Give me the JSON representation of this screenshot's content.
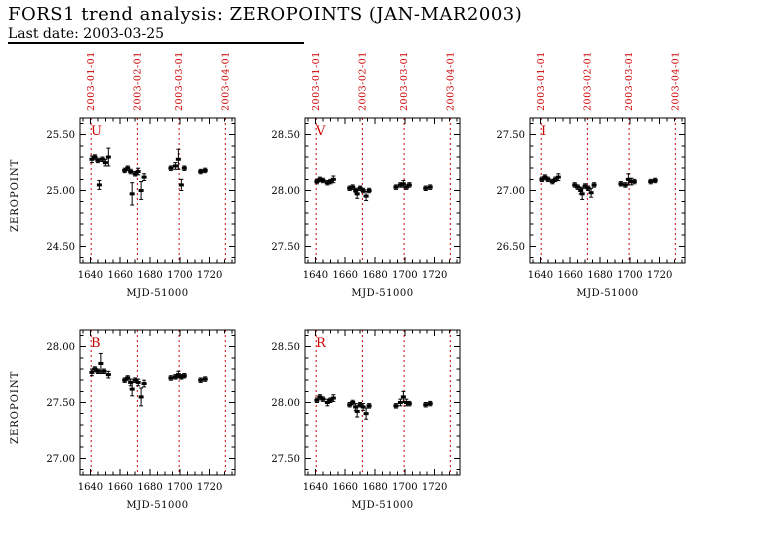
{
  "header": {
    "title": "FORS1 trend analysis: ZEROPOINTS (JAN-MAR2003)",
    "last_date": "Last date: 2003-03-25"
  },
  "ylabel": "ZEROPOINT",
  "colors": {
    "accent": "#cc0000",
    "data": "#000000"
  },
  "chart_data": [
    {
      "type": "scatter",
      "filter": "U",
      "xlabel": "MJD-51000",
      "xlim": [
        1633,
        1737
      ],
      "xticks": [
        1640,
        1660,
        1680,
        1700,
        1720
      ],
      "ylim": [
        24.35,
        25.65
      ],
      "yticks": [
        24.5,
        25.0,
        25.5
      ],
      "show_date_labels": true,
      "vlines": [
        {
          "x": 1640.5,
          "label": "2003-01-01"
        },
        {
          "x": 1671.5,
          "label": "2003-02-01"
        },
        {
          "x": 1699.5,
          "label": "2003-03-01"
        },
        {
          "x": 1730.5,
          "label": "2003-04-01"
        }
      ],
      "points": [
        [
          1641,
          25.28,
          0.03
        ],
        [
          1643,
          25.3,
          0.02
        ],
        [
          1645,
          25.27,
          0.02
        ],
        [
          1646,
          25.05,
          0.04
        ],
        [
          1648,
          25.28,
          0.02
        ],
        [
          1650,
          25.25,
          0.03
        ],
        [
          1652,
          25.3,
          0.08
        ],
        [
          1663,
          25.18,
          0.02
        ],
        [
          1665,
          25.2,
          0.02
        ],
        [
          1667,
          25.17,
          0.02
        ],
        [
          1668,
          24.97,
          0.1
        ],
        [
          1670,
          25.15,
          0.02
        ],
        [
          1672,
          25.17,
          0.03
        ],
        [
          1674,
          25.0,
          0.08
        ],
        [
          1676,
          25.12,
          0.03
        ],
        [
          1694,
          25.2,
          0.02
        ],
        [
          1697,
          25.22,
          0.03
        ],
        [
          1699,
          25.28,
          0.09
        ],
        [
          1701,
          25.05,
          0.05
        ],
        [
          1703,
          25.2,
          0.02
        ],
        [
          1714,
          25.17,
          0.02
        ],
        [
          1717,
          25.18,
          0.02
        ]
      ]
    },
    {
      "type": "scatter",
      "filter": "V",
      "xlabel": "MJD-51000",
      "xlim": [
        1633,
        1737
      ],
      "xticks": [
        1640,
        1660,
        1680,
        1700,
        1720
      ],
      "ylim": [
        27.35,
        28.65
      ],
      "yticks": [
        27.5,
        28.0,
        28.5
      ],
      "show_date_labels": true,
      "vlines": [
        {
          "x": 1640.5,
          "label": "2003-01-01"
        },
        {
          "x": 1671.5,
          "label": "2003-02-01"
        },
        {
          "x": 1699.5,
          "label": "2003-03-01"
        },
        {
          "x": 1730.5,
          "label": "2003-04-01"
        }
      ],
      "points": [
        [
          1641,
          28.08,
          0.02
        ],
        [
          1643,
          28.1,
          0.02
        ],
        [
          1645,
          28.09,
          0.02
        ],
        [
          1648,
          28.07,
          0.02
        ],
        [
          1650,
          28.08,
          0.02
        ],
        [
          1652,
          28.1,
          0.03
        ],
        [
          1663,
          28.02,
          0.02
        ],
        [
          1665,
          28.03,
          0.02
        ],
        [
          1667,
          28.0,
          0.02
        ],
        [
          1668,
          27.97,
          0.04
        ],
        [
          1670,
          28.02,
          0.02
        ],
        [
          1672,
          28.0,
          0.02
        ],
        [
          1674,
          27.95,
          0.04
        ],
        [
          1676,
          28.0,
          0.02
        ],
        [
          1694,
          28.03,
          0.02
        ],
        [
          1697,
          28.05,
          0.02
        ],
        [
          1699,
          28.06,
          0.03
        ],
        [
          1701,
          28.03,
          0.02
        ],
        [
          1703,
          28.05,
          0.02
        ],
        [
          1714,
          28.02,
          0.02
        ],
        [
          1717,
          28.03,
          0.02
        ]
      ]
    },
    {
      "type": "scatter",
      "filter": "I",
      "xlabel": "MJD-51000",
      "xlim": [
        1633,
        1737
      ],
      "xticks": [
        1640,
        1660,
        1680,
        1700,
        1720
      ],
      "ylim": [
        26.35,
        27.65
      ],
      "yticks": [
        26.5,
        27.0,
        27.5
      ],
      "show_date_labels": true,
      "vlines": [
        {
          "x": 1640.5,
          "label": "2003-01-01"
        },
        {
          "x": 1671.5,
          "label": "2003-02-01"
        },
        {
          "x": 1699.5,
          "label": "2003-03-01"
        },
        {
          "x": 1730.5,
          "label": "2003-04-01"
        }
      ],
      "points": [
        [
          1641,
          27.1,
          0.02
        ],
        [
          1643,
          27.12,
          0.02
        ],
        [
          1645,
          27.1,
          0.02
        ],
        [
          1648,
          27.08,
          0.02
        ],
        [
          1650,
          27.1,
          0.02
        ],
        [
          1652,
          27.12,
          0.03
        ],
        [
          1663,
          27.05,
          0.02
        ],
        [
          1665,
          27.03,
          0.02
        ],
        [
          1667,
          27.0,
          0.03
        ],
        [
          1668,
          26.97,
          0.05
        ],
        [
          1670,
          27.04,
          0.02
        ],
        [
          1672,
          27.02,
          0.02
        ],
        [
          1674,
          26.98,
          0.04
        ],
        [
          1676,
          27.05,
          0.02
        ],
        [
          1694,
          27.06,
          0.02
        ],
        [
          1697,
          27.05,
          0.02
        ],
        [
          1699,
          27.1,
          0.05
        ],
        [
          1701,
          27.08,
          0.03
        ],
        [
          1703,
          27.08,
          0.02
        ],
        [
          1714,
          27.08,
          0.02
        ],
        [
          1717,
          27.09,
          0.02
        ]
      ]
    },
    {
      "type": "scatter",
      "filter": "B",
      "xlabel": "MJD-51000",
      "xlim": [
        1633,
        1737
      ],
      "xticks": [
        1640,
        1660,
        1680,
        1700,
        1720
      ],
      "ylim": [
        26.85,
        28.15
      ],
      "yticks": [
        27.0,
        27.5,
        28.0
      ],
      "show_date_labels": false,
      "vlines": [
        {
          "x": 1640.5,
          "label": "2003-01-01"
        },
        {
          "x": 1671.5,
          "label": "2003-02-01"
        },
        {
          "x": 1699.5,
          "label": "2003-03-01"
        },
        {
          "x": 1730.5,
          "label": "2003-04-01"
        }
      ],
      "points": [
        [
          1641,
          27.77,
          0.03
        ],
        [
          1643,
          27.8,
          0.02
        ],
        [
          1645,
          27.78,
          0.02
        ],
        [
          1647,
          27.85,
          0.09
        ],
        [
          1649,
          27.78,
          0.02
        ],
        [
          1652,
          27.75,
          0.03
        ],
        [
          1663,
          27.7,
          0.02
        ],
        [
          1665,
          27.72,
          0.02
        ],
        [
          1667,
          27.68,
          0.03
        ],
        [
          1668,
          27.62,
          0.06
        ],
        [
          1670,
          27.7,
          0.02
        ],
        [
          1672,
          27.68,
          0.03
        ],
        [
          1674,
          27.55,
          0.08
        ],
        [
          1676,
          27.67,
          0.03
        ],
        [
          1694,
          27.72,
          0.02
        ],
        [
          1697,
          27.73,
          0.02
        ],
        [
          1699,
          27.75,
          0.03
        ],
        [
          1701,
          27.73,
          0.02
        ],
        [
          1703,
          27.74,
          0.02
        ],
        [
          1714,
          27.7,
          0.02
        ],
        [
          1717,
          27.71,
          0.02
        ]
      ]
    },
    {
      "type": "scatter",
      "filter": "R",
      "xlabel": "MJD-51000",
      "xlim": [
        1633,
        1737
      ],
      "xticks": [
        1640,
        1660,
        1680,
        1700,
        1720
      ],
      "ylim": [
        27.35,
        28.65
      ],
      "yticks": [
        27.5,
        28.0,
        28.5
      ],
      "show_date_labels": false,
      "vlines": [
        {
          "x": 1640.5,
          "label": "2003-01-01"
        },
        {
          "x": 1671.5,
          "label": "2003-02-01"
        },
        {
          "x": 1699.5,
          "label": "2003-03-01"
        },
        {
          "x": 1730.5,
          "label": "2003-04-01"
        }
      ],
      "points": [
        [
          1641,
          28.02,
          0.02
        ],
        [
          1643,
          28.05,
          0.02
        ],
        [
          1645,
          28.03,
          0.02
        ],
        [
          1648,
          28.0,
          0.03
        ],
        [
          1650,
          28.02,
          0.02
        ],
        [
          1652,
          28.04,
          0.03
        ],
        [
          1663,
          27.98,
          0.02
        ],
        [
          1665,
          28.0,
          0.02
        ],
        [
          1667,
          27.96,
          0.03
        ],
        [
          1668,
          27.92,
          0.05
        ],
        [
          1670,
          27.98,
          0.02
        ],
        [
          1672,
          27.96,
          0.03
        ],
        [
          1674,
          27.9,
          0.05
        ],
        [
          1676,
          27.97,
          0.02
        ],
        [
          1694,
          27.97,
          0.02
        ],
        [
          1697,
          28.0,
          0.03
        ],
        [
          1699,
          28.05,
          0.05
        ],
        [
          1701,
          28.0,
          0.03
        ],
        [
          1703,
          27.99,
          0.02
        ],
        [
          1714,
          27.98,
          0.02
        ],
        [
          1717,
          27.99,
          0.02
        ]
      ]
    }
  ]
}
